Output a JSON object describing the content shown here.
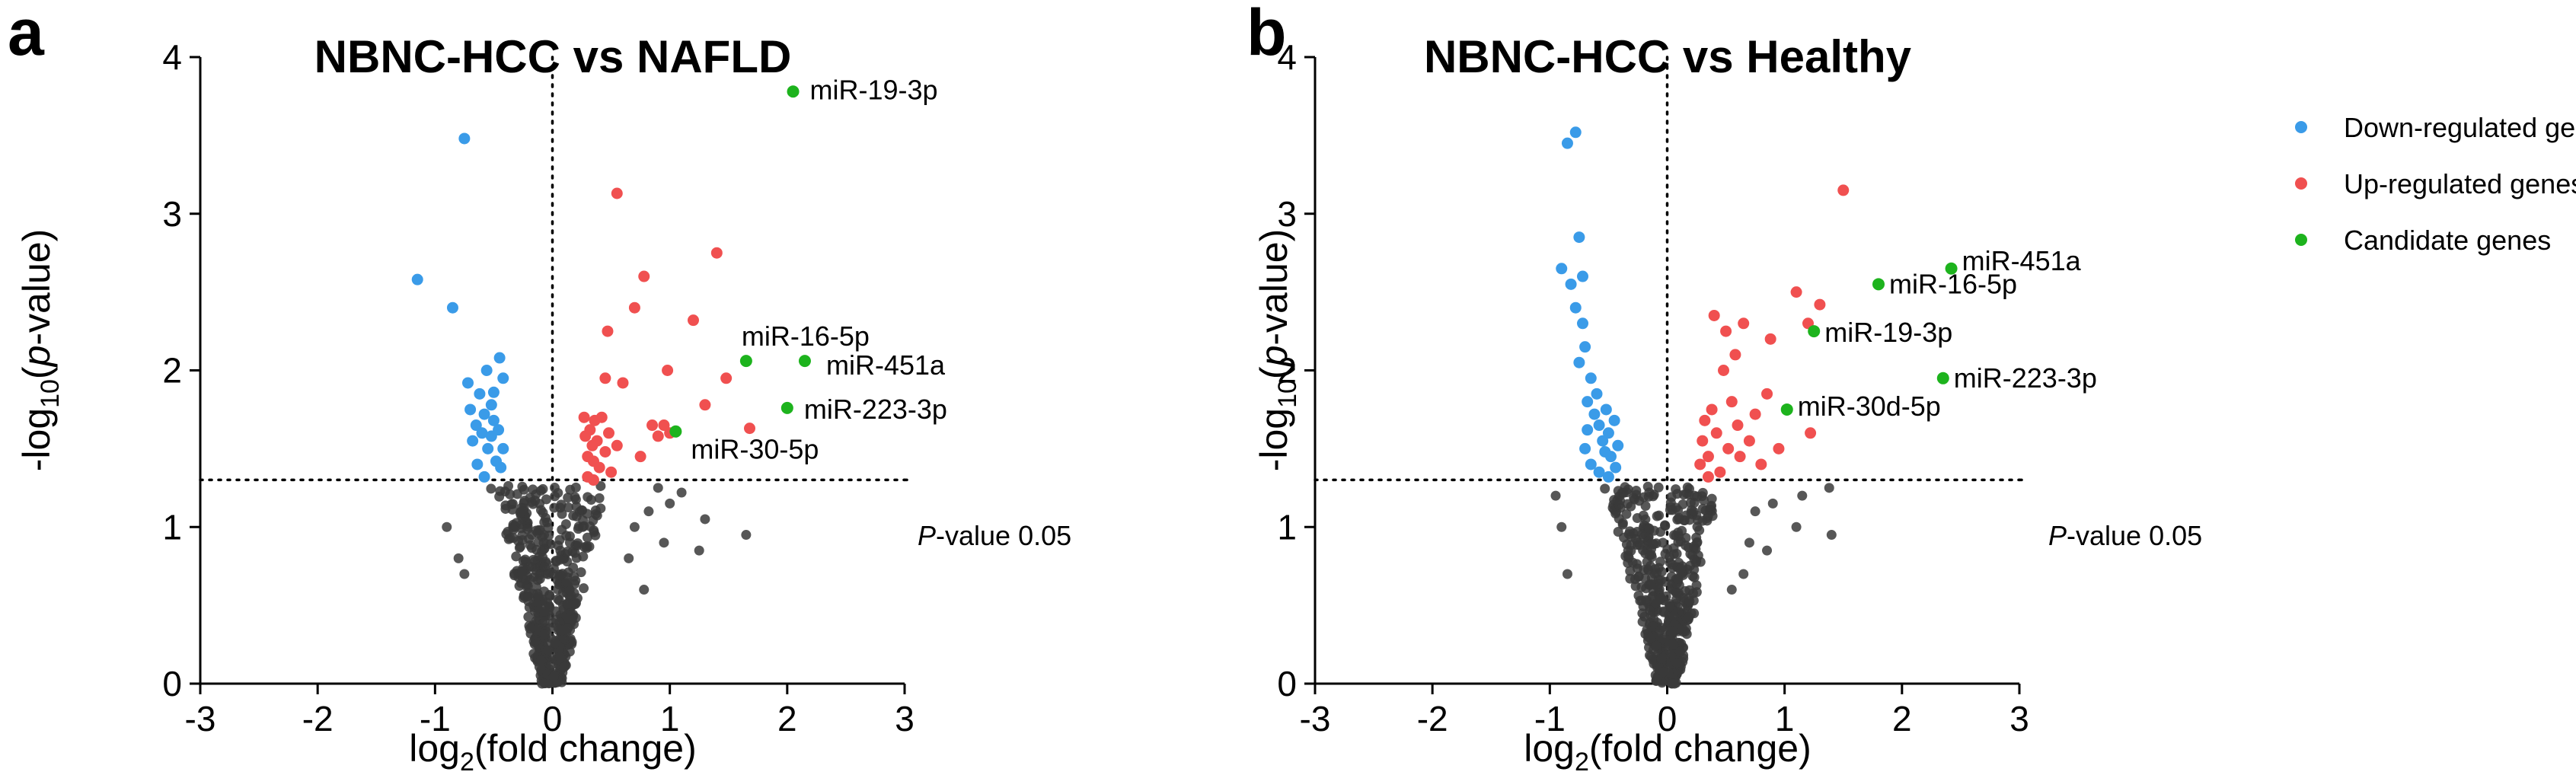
{
  "colors": {
    "down": "#3a9be8",
    "up": "#f05050",
    "candidate": "#1db31d",
    "ns": "#3a3a3a"
  },
  "legend": {
    "position": "right",
    "items": [
      {
        "label": "Down-regulated genes",
        "color": "#3a9be8"
      },
      {
        "label": "Up-regulated genes",
        "color": "#f05050"
      },
      {
        "label": "Candidate genes",
        "color": "#1db31d"
      }
    ]
  },
  "chart_data": [
    {
      "type": "scatter",
      "panel_letter": "a",
      "title": "NBNC-HCC vs NAFLD",
      "xlabel": {
        "base": "log",
        "sub": "2",
        "rest": "(fold change)"
      },
      "ylabel": {
        "pre": "-log",
        "sub": "10",
        "open": "(",
        "italic": "p",
        "close": "-value)"
      },
      "xlim": [
        -3,
        3
      ],
      "ylim": [
        0,
        4
      ],
      "xticks": [
        "-3",
        "-2",
        "-1",
        "0",
        "1",
        "2",
        "3"
      ],
      "yticks": [
        "0",
        "1",
        "2",
        "3",
        "4"
      ],
      "threshold": {
        "y": 1.301,
        "label_italic": "P",
        "label_rest": "-value 0.05"
      },
      "down": [
        [
          -1.15,
          2.58
        ],
        [
          -0.85,
          2.4
        ],
        [
          -0.75,
          3.48
        ],
        [
          -0.72,
          1.92
        ],
        [
          -0.7,
          1.75
        ],
        [
          -0.68,
          1.55
        ],
        [
          -0.65,
          1.65
        ],
        [
          -0.62,
          1.85
        ],
        [
          -0.6,
          1.6
        ],
        [
          -0.58,
          1.72
        ],
        [
          -0.56,
          2.0
        ],
        [
          -0.55,
          1.5
        ],
        [
          -0.52,
          1.78
        ],
        [
          -0.5,
          1.68
        ],
        [
          -0.48,
          1.42
        ],
        [
          -0.46,
          1.62
        ],
        [
          -0.45,
          2.08
        ],
        [
          -0.44,
          1.38
        ],
        [
          -0.42,
          1.95
        ],
        [
          -0.42,
          1.5
        ],
        [
          -0.64,
          1.4
        ],
        [
          -0.58,
          1.32
        ],
        [
          -0.5,
          1.86
        ],
        [
          -0.52,
          1.58
        ]
      ],
      "up": [
        [
          0.27,
          1.7
        ],
        [
          0.28,
          1.58
        ],
        [
          0.3,
          1.45
        ],
        [
          0.3,
          1.32
        ],
        [
          0.32,
          1.62
        ],
        [
          0.34,
          1.52
        ],
        [
          0.35,
          1.42
        ],
        [
          0.36,
          1.68
        ],
        [
          0.38,
          1.55
        ],
        [
          0.4,
          1.38
        ],
        [
          0.42,
          1.7
        ],
        [
          0.45,
          1.95
        ],
        [
          0.45,
          1.48
        ],
        [
          0.47,
          2.25
        ],
        [
          0.48,
          1.6
        ],
        [
          0.5,
          1.35
        ],
        [
          0.55,
          1.52
        ],
        [
          0.55,
          3.13
        ],
        [
          0.6,
          1.92
        ],
        [
          0.7,
          2.4
        ],
        [
          0.75,
          1.45
        ],
        [
          0.78,
          2.6
        ],
        [
          0.85,
          1.65
        ],
        [
          0.95,
          1.65
        ],
        [
          0.98,
          2.0
        ],
        [
          1.0,
          1.6
        ],
        [
          1.2,
          2.32
        ],
        [
          1.3,
          1.78
        ],
        [
          1.4,
          2.75
        ],
        [
          1.48,
          1.95
        ],
        [
          1.68,
          1.63
        ],
        [
          0.9,
          1.58
        ],
        [
          0.35,
          1.3
        ]
      ],
      "candidates": [
        {
          "x": 2.05,
          "y": 3.78,
          "label": "miR-19-3p"
        },
        {
          "x": 1.65,
          "y": 2.06,
          "label": "miR-16-5p"
        },
        {
          "x": 2.15,
          "y": 2.06,
          "label": "miR-451a"
        },
        {
          "x": 2.0,
          "y": 1.76,
          "label": "miR-223-3p"
        },
        {
          "x": 1.05,
          "y": 1.61,
          "label": "miR-30-5p"
        }
      ],
      "ns_extra": [
        [
          1.1,
          1.22
        ],
        [
          1.3,
          1.05
        ],
        [
          1.65,
          0.95
        ],
        [
          0.9,
          1.25
        ],
        [
          1.0,
          1.15
        ],
        [
          0.65,
          0.8
        ],
        [
          0.78,
          0.6
        ],
        [
          0.95,
          0.9
        ],
        [
          0.7,
          1.0
        ],
        [
          0.82,
          1.1
        ],
        [
          -0.8,
          0.8
        ],
        [
          -0.9,
          1.0
        ],
        [
          -0.75,
          0.7
        ],
        [
          1.25,
          0.85
        ]
      ]
    },
    {
      "type": "scatter",
      "panel_letter": "b",
      "title": "NBNC-HCC vs Healthy",
      "xlabel": {
        "base": "log",
        "sub": "2",
        "rest": "(fold change)"
      },
      "ylabel": {
        "pre": "-log",
        "sub": "10",
        "open": "(",
        "italic": "p",
        "close": "-value)"
      },
      "xlim": [
        -3,
        3
      ],
      "ylim": [
        0,
        4
      ],
      "xticks": [
        "-3",
        "-2",
        "-1",
        "0",
        "1",
        "2",
        "3"
      ],
      "yticks": [
        "0",
        "1",
        "2",
        "3",
        "4"
      ],
      "threshold": {
        "y": 1.301,
        "label_italic": "P",
        "label_rest": "-value 0.05"
      },
      "down": [
        [
          -0.85,
          3.45
        ],
        [
          -0.78,
          3.52
        ],
        [
          -0.75,
          2.85
        ],
        [
          -0.9,
          2.65
        ],
        [
          -0.82,
          2.55
        ],
        [
          -0.78,
          2.4
        ],
        [
          -0.72,
          2.3
        ],
        [
          -0.7,
          2.15
        ],
        [
          -0.75,
          2.05
        ],
        [
          -0.65,
          1.95
        ],
        [
          -0.68,
          1.8
        ],
        [
          -0.62,
          1.72
        ],
        [
          -0.6,
          1.85
        ],
        [
          -0.58,
          1.65
        ],
        [
          -0.55,
          1.55
        ],
        [
          -0.52,
          1.75
        ],
        [
          -0.5,
          1.6
        ],
        [
          -0.48,
          1.45
        ],
        [
          -0.45,
          1.68
        ],
        [
          -0.44,
          1.38
        ],
        [
          -0.42,
          1.52
        ],
        [
          -0.7,
          1.5
        ],
        [
          -0.65,
          1.4
        ],
        [
          -0.58,
          1.35
        ],
        [
          -0.5,
          1.32
        ],
        [
          -0.72,
          2.6
        ],
        [
          -0.68,
          1.62
        ],
        [
          -0.53,
          1.48
        ]
      ],
      "up": [
        [
          0.28,
          1.4
        ],
        [
          0.3,
          1.55
        ],
        [
          0.32,
          1.68
        ],
        [
          0.35,
          1.45
        ],
        [
          0.38,
          1.75
        ],
        [
          0.4,
          2.35
        ],
        [
          0.42,
          1.6
        ],
        [
          0.45,
          1.35
        ],
        [
          0.48,
          2.0
        ],
        [
          0.5,
          2.25
        ],
        [
          0.52,
          1.5
        ],
        [
          0.55,
          1.8
        ],
        [
          0.58,
          2.1
        ],
        [
          0.6,
          1.65
        ],
        [
          0.62,
          1.45
        ],
        [
          0.65,
          2.3
        ],
        [
          0.7,
          1.55
        ],
        [
          0.75,
          1.72
        ],
        [
          0.8,
          1.4
        ],
        [
          0.85,
          1.85
        ],
        [
          0.88,
          2.2
        ],
        [
          1.1,
          2.5
        ],
        [
          1.2,
          2.3
        ],
        [
          1.3,
          2.42
        ],
        [
          1.5,
          3.15
        ],
        [
          1.22,
          1.6
        ],
        [
          0.35,
          1.32
        ],
        [
          0.95,
          1.5
        ]
      ],
      "candidates": [
        {
          "x": 2.42,
          "y": 2.65,
          "label": "miR-451a"
        },
        {
          "x": 1.8,
          "y": 2.55,
          "label": "miR-16-5p"
        },
        {
          "x": 1.25,
          "y": 2.25,
          "label": "miR-19-3p"
        },
        {
          "x": 2.35,
          "y": 1.95,
          "label": "miR-223-3p"
        },
        {
          "x": 1.02,
          "y": 1.75,
          "label": "miR-30d-5p"
        }
      ],
      "ns_extra": [
        [
          1.38,
          1.25
        ],
        [
          1.4,
          0.95
        ],
        [
          1.1,
          1.0
        ],
        [
          0.9,
          1.15
        ],
        [
          0.85,
          0.85
        ],
        [
          0.7,
          0.9
        ],
        [
          0.75,
          1.1
        ],
        [
          0.65,
          0.7
        ],
        [
          -0.9,
          1.0
        ],
        [
          -0.85,
          0.7
        ],
        [
          -0.95,
          1.2
        ],
        [
          0.55,
          0.6
        ],
        [
          1.15,
          1.2
        ]
      ]
    }
  ]
}
